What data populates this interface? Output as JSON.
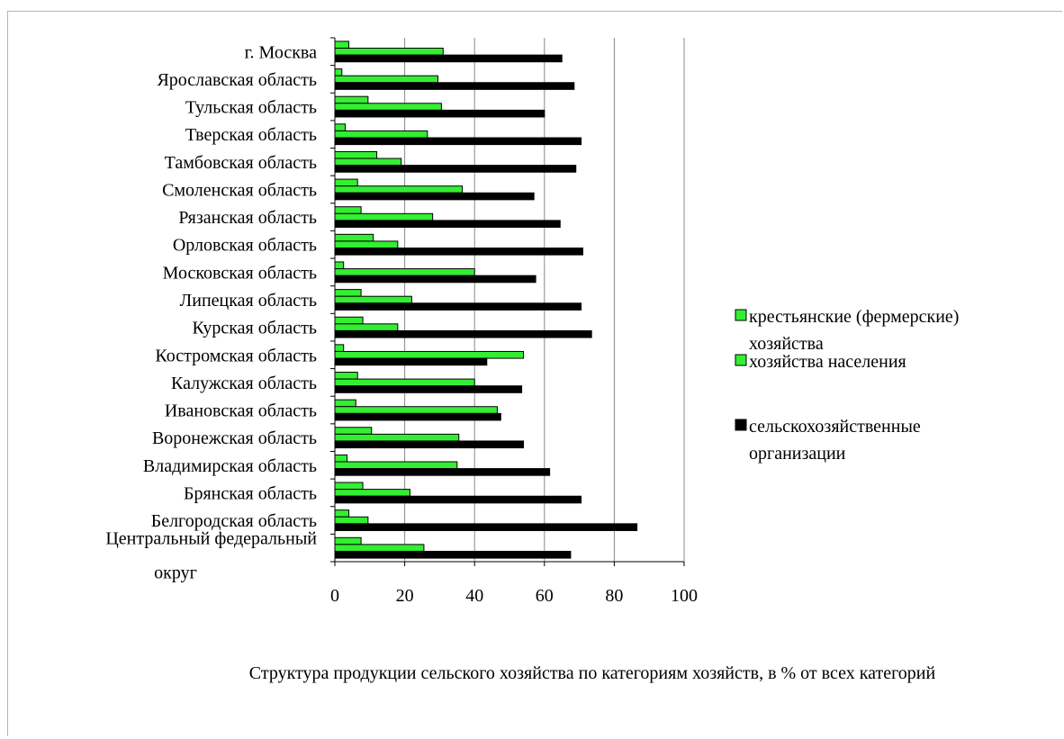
{
  "chart_data": {
    "type": "bar",
    "orientation": "horizontal",
    "title": "Структура продукции сельского хозяйства по категориям хозяйств, в % от всех категорий",
    "categories": [
      "г. Москва",
      "Ярославская область",
      "Тульская область",
      "Тверская область",
      "Тамбовская область",
      "Смоленская область",
      "Рязанская область",
      "Орловская область",
      "Московская область",
      "Липецкая область",
      "Курская область",
      "Костромская область",
      "Калужская область",
      "Ивановская область",
      "Воронежская область",
      "Владимирская область",
      "Брянская область",
      "Белгородская область",
      "Центральный федеральный округ"
    ],
    "series": [
      {
        "name": "крестьянские (фермерские) хозяйства",
        "color": "#33ee33",
        "values": [
          4,
          2,
          9.5,
          3,
          12,
          6.5,
          7.5,
          11,
          2.5,
          7.5,
          8,
          2.5,
          6.5,
          6,
          10.5,
          3.5,
          8,
          4,
          7.5
        ]
      },
      {
        "name": "хозяйства населения",
        "color": "#33ee33",
        "values": [
          31,
          29.5,
          30.5,
          26.5,
          19,
          36.5,
          28,
          18,
          40,
          22,
          18,
          54,
          40,
          46.5,
          35.5,
          35,
          21.5,
          9.5,
          25.5
        ]
      },
      {
        "name": "сельскохозяйственные организации",
        "color": "#000000",
        "values": [
          65,
          68.5,
          60,
          70.5,
          69,
          57,
          64.5,
          71,
          57.5,
          70.5,
          73.5,
          43.5,
          53.5,
          47.5,
          54,
          61.5,
          70.5,
          86.5,
          67.5
        ]
      }
    ],
    "x_ticks": [
      "0",
      "20",
      "40",
      "60",
      "80",
      "100"
    ],
    "xlim": [
      0,
      100
    ],
    "grid": true,
    "legend_position": "right"
  }
}
